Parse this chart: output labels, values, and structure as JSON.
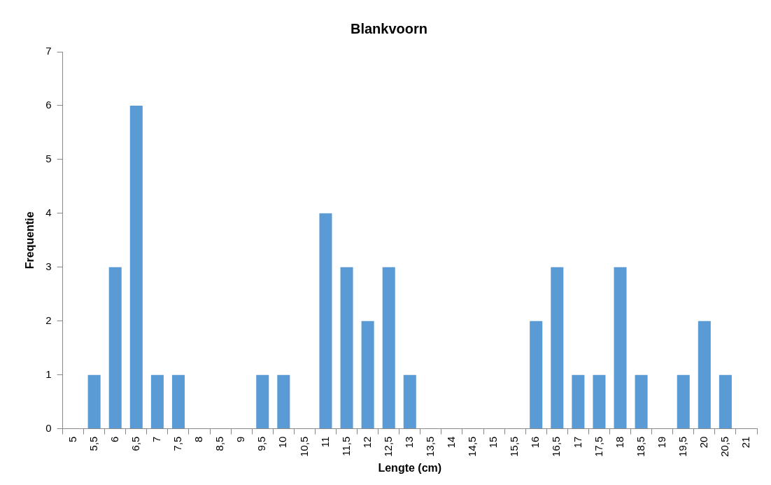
{
  "chart_data": {
    "type": "bar",
    "title": "Blankvoorn",
    "xlabel": "Lengte (cm)",
    "ylabel": "Frequentie",
    "categories": [
      "5",
      "5,5",
      "6",
      "6,5",
      "7",
      "7,5",
      "8",
      "8,5",
      "9",
      "9,5",
      "10",
      "10,5",
      "11",
      "11,5",
      "12",
      "12,5",
      "13",
      "13,5",
      "14",
      "14,5",
      "15",
      "15,5",
      "16",
      "16,5",
      "17",
      "17,5",
      "18",
      "18,5",
      "19",
      "19,5",
      "20",
      "20,5",
      "21"
    ],
    "values": [
      0,
      1,
      3,
      6,
      1,
      1,
      0,
      0,
      0,
      1,
      1,
      0,
      4,
      3,
      2,
      3,
      1,
      0,
      0,
      0,
      0,
      0,
      2,
      3,
      1,
      1,
      3,
      1,
      0,
      1,
      2,
      1,
      0
    ],
    "color": "#5b9bd5",
    "ylim": [
      0,
      7
    ],
    "yticks": [
      0,
      1,
      2,
      3,
      4,
      5,
      6,
      7
    ],
    "grid": false,
    "legend": false
  }
}
